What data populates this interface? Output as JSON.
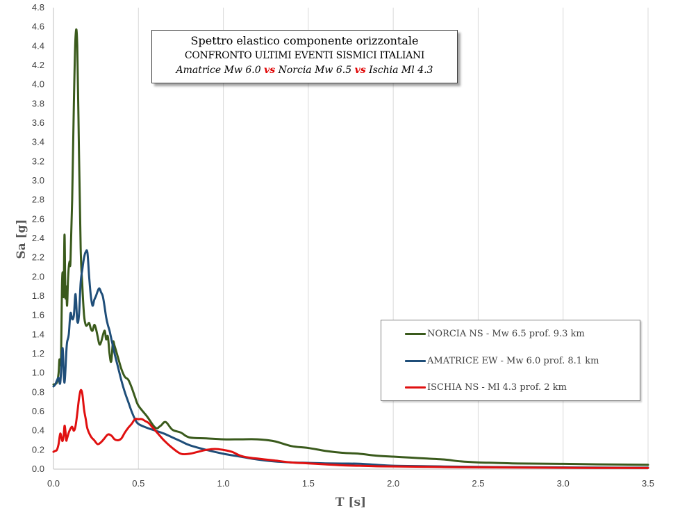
{
  "chart_data": {
    "type": "line",
    "title_lines": {
      "line1": "Spettro elastico componente orizzontale",
      "line2": "CONFRONTO ULTIMI EVENTI SISMICI ITALIANI",
      "line3_part1": "Amatrice Mw 6.0",
      "line3_vs1": "vs",
      "line3_part2": "Norcia Mw 6.5",
      "line3_vs2": "vs",
      "line3_part3": "Ischia Ml 4.3"
    },
    "xlabel": "T [s]",
    "ylabel": "Sa  [g]",
    "xlim": [
      0,
      3.5
    ],
    "ylim": [
      0,
      4.8
    ],
    "xticks": [
      0.0,
      0.5,
      1.0,
      1.5,
      2.0,
      2.5,
      3.0,
      3.5
    ],
    "xtick_labels": [
      "0.0",
      "0.5",
      "1.0",
      "1.5",
      "2.0",
      "2.5",
      "3.0",
      "3.5"
    ],
    "yticks": [
      0.0,
      0.2,
      0.4,
      0.6,
      0.8,
      1.0,
      1.2,
      1.4,
      1.6,
      1.8,
      2.0,
      2.2,
      2.4,
      2.6,
      2.8,
      3.0,
      3.2,
      3.4,
      3.6,
      3.8,
      4.0,
      4.2,
      4.4,
      4.6,
      4.8
    ],
    "ytick_labels": [
      "0.0",
      "0.2",
      "0.4",
      "0.6",
      "0.8",
      "1.0",
      "1.2",
      "1.4",
      "1.6",
      "1.8",
      "2.0",
      "2.2",
      "2.4",
      "2.6",
      "2.8",
      "3.0",
      "3.2",
      "3.4",
      "3.6",
      "3.8",
      "4.0",
      "4.2",
      "4.4",
      "4.6",
      "4.8"
    ],
    "grid": "vertical",
    "legend_position": "right",
    "series": [
      {
        "name": "NORCIA NS - Mw 6.5 prof. 9.3 km",
        "color": "#3a5a1c",
        "x": [
          0.0,
          0.02,
          0.03,
          0.035,
          0.04,
          0.045,
          0.05,
          0.055,
          0.06,
          0.065,
          0.07,
          0.075,
          0.08,
          0.085,
          0.09,
          0.095,
          0.1,
          0.11,
          0.12,
          0.13,
          0.14,
          0.15,
          0.16,
          0.17,
          0.18,
          0.19,
          0.2,
          0.21,
          0.22,
          0.23,
          0.24,
          0.25,
          0.26,
          0.27,
          0.28,
          0.3,
          0.31,
          0.32,
          0.33,
          0.34,
          0.35,
          0.36,
          0.38,
          0.4,
          0.42,
          0.44,
          0.46,
          0.48,
          0.5,
          0.55,
          0.6,
          0.63,
          0.66,
          0.7,
          0.75,
          0.8,
          0.9,
          1.0,
          1.1,
          1.2,
          1.3,
          1.4,
          1.5,
          1.6,
          1.7,
          1.8,
          1.9,
          2.0,
          2.1,
          2.2,
          2.3,
          2.4,
          2.5,
          2.6,
          2.7,
          2.8,
          3.0,
          3.2,
          3.5
        ],
        "y": [
          0.88,
          0.9,
          1.0,
          1.14,
          1.08,
          1.2,
          1.9,
          2.04,
          1.8,
          2.44,
          1.8,
          1.9,
          1.7,
          1.95,
          2.1,
          2.16,
          2.16,
          2.8,
          3.8,
          4.5,
          4.4,
          3.3,
          2.3,
          1.9,
          1.6,
          1.5,
          1.5,
          1.52,
          1.46,
          1.44,
          1.5,
          1.46,
          1.38,
          1.3,
          1.32,
          1.44,
          1.35,
          1.38,
          1.2,
          1.12,
          1.32,
          1.28,
          1.16,
          1.04,
          0.96,
          0.93,
          0.85,
          0.75,
          0.66,
          0.55,
          0.43,
          0.45,
          0.49,
          0.41,
          0.38,
          0.33,
          0.32,
          0.31,
          0.31,
          0.31,
          0.29,
          0.24,
          0.22,
          0.19,
          0.17,
          0.16,
          0.14,
          0.13,
          0.12,
          0.11,
          0.1,
          0.08,
          0.07,
          0.065,
          0.06,
          0.058,
          0.055,
          0.05,
          0.045
        ]
      },
      {
        "name": "AMATRICE EW - Mw 6.0 prof. 8.1 km",
        "color": "#1f4e79",
        "x": [
          0.0,
          0.01,
          0.02,
          0.03,
          0.04,
          0.05,
          0.055,
          0.06,
          0.065,
          0.07,
          0.075,
          0.08,
          0.09,
          0.1,
          0.11,
          0.12,
          0.13,
          0.14,
          0.15,
          0.16,
          0.17,
          0.18,
          0.19,
          0.2,
          0.21,
          0.22,
          0.23,
          0.24,
          0.25,
          0.26,
          0.27,
          0.28,
          0.29,
          0.3,
          0.31,
          0.32,
          0.33,
          0.34,
          0.36,
          0.38,
          0.4,
          0.42,
          0.44,
          0.46,
          0.48,
          0.5,
          0.55,
          0.6,
          0.65,
          0.7,
          0.75,
          0.8,
          0.9,
          1.0,
          1.1,
          1.2,
          1.3,
          1.4,
          1.5,
          1.6,
          1.7,
          1.8,
          1.9,
          2.0,
          2.2,
          2.4,
          2.6,
          2.8,
          3.0,
          3.2,
          3.5
        ],
        "y": [
          0.86,
          0.88,
          0.92,
          0.95,
          0.9,
          1.2,
          1.24,
          1.0,
          0.9,
          1.02,
          1.2,
          1.32,
          1.4,
          1.62,
          1.56,
          1.6,
          1.82,
          1.54,
          1.6,
          1.94,
          2.08,
          2.2,
          2.26,
          2.25,
          2.0,
          1.8,
          1.7,
          1.76,
          1.8,
          1.85,
          1.88,
          1.84,
          1.8,
          1.7,
          1.58,
          1.5,
          1.44,
          1.36,
          1.2,
          1.06,
          0.92,
          0.8,
          0.7,
          0.6,
          0.52,
          0.47,
          0.43,
          0.4,
          0.37,
          0.33,
          0.29,
          0.25,
          0.2,
          0.16,
          0.13,
          0.1,
          0.08,
          0.07,
          0.065,
          0.06,
          0.058,
          0.056,
          0.045,
          0.035,
          0.03,
          0.025,
          0.022,
          0.02,
          0.018,
          0.016,
          0.015
        ]
      },
      {
        "name": "ISCHIA NS - Ml 4.3 prof. 2 km",
        "color": "#e01010",
        "x": [
          0.0,
          0.01,
          0.02,
          0.03,
          0.04,
          0.05,
          0.055,
          0.06,
          0.065,
          0.07,
          0.075,
          0.08,
          0.09,
          0.1,
          0.11,
          0.12,
          0.13,
          0.14,
          0.15,
          0.16,
          0.17,
          0.18,
          0.19,
          0.2,
          0.22,
          0.24,
          0.26,
          0.28,
          0.3,
          0.32,
          0.34,
          0.36,
          0.38,
          0.4,
          0.42,
          0.44,
          0.46,
          0.48,
          0.5,
          0.52,
          0.54,
          0.56,
          0.58,
          0.6,
          0.62,
          0.65,
          0.7,
          0.75,
          0.8,
          0.85,
          0.9,
          0.95,
          1.0,
          1.05,
          1.1,
          1.15,
          1.2,
          1.3,
          1.4,
          1.5,
          1.6,
          1.7,
          1.8,
          1.9,
          2.0,
          2.2,
          2.4,
          2.6,
          2.8,
          3.0,
          3.2,
          3.5
        ],
        "y": [
          0.18,
          0.19,
          0.2,
          0.26,
          0.37,
          0.3,
          0.3,
          0.35,
          0.45,
          0.4,
          0.3,
          0.32,
          0.38,
          0.42,
          0.44,
          0.4,
          0.45,
          0.58,
          0.73,
          0.82,
          0.78,
          0.62,
          0.52,
          0.42,
          0.34,
          0.3,
          0.26,
          0.28,
          0.32,
          0.36,
          0.35,
          0.31,
          0.3,
          0.32,
          0.38,
          0.43,
          0.47,
          0.52,
          0.52,
          0.52,
          0.5,
          0.48,
          0.44,
          0.4,
          0.36,
          0.3,
          0.22,
          0.16,
          0.16,
          0.18,
          0.2,
          0.21,
          0.2,
          0.18,
          0.14,
          0.12,
          0.11,
          0.09,
          0.07,
          0.06,
          0.05,
          0.04,
          0.035,
          0.03,
          0.028,
          0.024,
          0.02,
          0.018,
          0.016,
          0.014,
          0.013,
          0.012
        ]
      }
    ]
  }
}
